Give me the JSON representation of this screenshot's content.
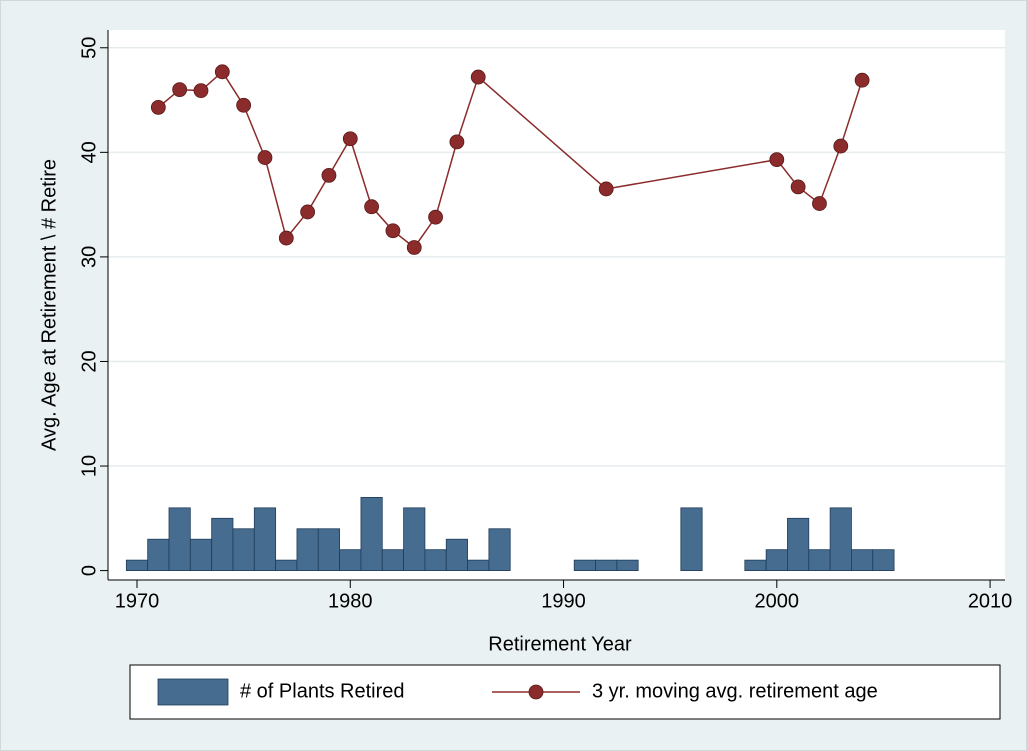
{
  "chart_data": {
    "type": "combo",
    "xlabel": "Retirement Year",
    "ylabel": "Avg. Age at Retirement \\ # Retire",
    "xlim": [
      1968.64,
      2010.7
    ],
    "ylim": [
      -0.9,
      51.7
    ],
    "xticks": [
      1970,
      1980,
      1990,
      2000,
      2010
    ],
    "yticks": [
      0,
      10,
      20,
      30,
      40,
      50
    ],
    "grid": true,
    "legend": "bottom",
    "series": [
      {
        "name": "# of Plants Retired",
        "type": "bar",
        "color": "#466c8f",
        "x": [
          1970,
          1971,
          1972,
          1973,
          1974,
          1975,
          1976,
          1977,
          1978,
          1979,
          1980,
          1981,
          1982,
          1983,
          1984,
          1985,
          1986,
          1987,
          1991,
          1992,
          1993,
          1996,
          1999,
          2000,
          2001,
          2002,
          2003,
          2004,
          2005
        ],
        "values": [
          1,
          3,
          6,
          3,
          5,
          4,
          6,
          1,
          4,
          4,
          2,
          7,
          2,
          6,
          2,
          3,
          1,
          4,
          1,
          1,
          1,
          6,
          1,
          2,
          5,
          2,
          6,
          2,
          2
        ]
      },
      {
        "name": "3 yr. moving avg. retirement age",
        "type": "line",
        "color": "#8c2b2b",
        "x": [
          1971,
          1972,
          1973,
          1974,
          1975,
          1976,
          1977,
          1978,
          1979,
          1980,
          1981,
          1982,
          1983,
          1984,
          1985,
          1986,
          1992,
          2000,
          2001,
          2002,
          2003,
          2004
        ],
        "values": [
          44.3,
          46,
          45.9,
          47.7,
          44.5,
          39.5,
          31.8,
          34.3,
          37.8,
          41.3,
          34.8,
          32.5,
          30.9,
          33.8,
          41,
          47.2,
          36.5,
          39.3,
          36.7,
          35.1,
          40.6,
          46.9
        ]
      }
    ]
  }
}
